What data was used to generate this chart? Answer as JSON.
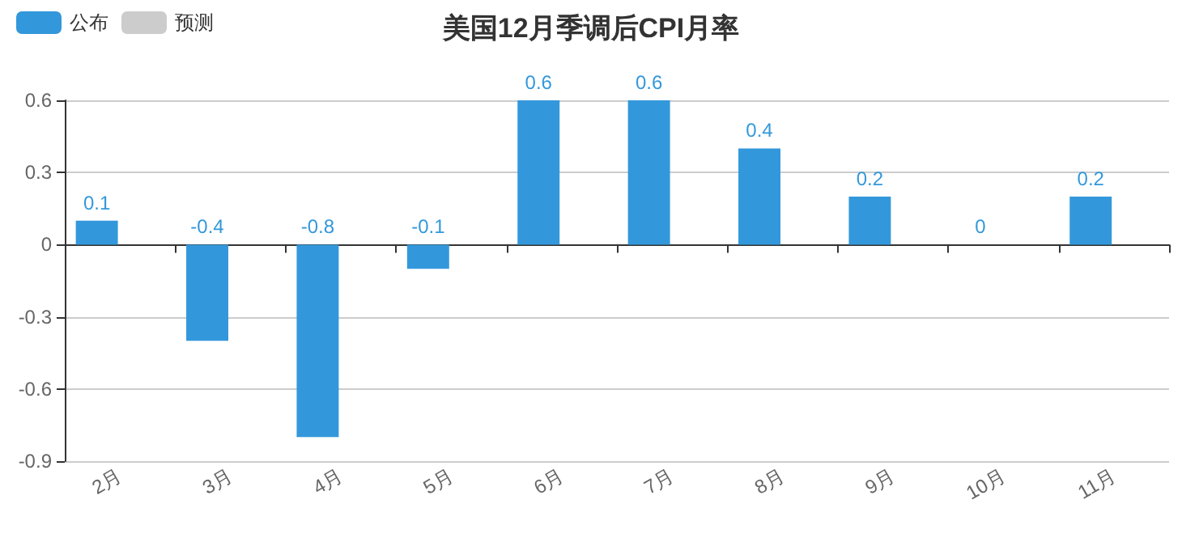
{
  "chart_data": {
    "type": "bar",
    "title": "美国12月季调后CPI月率",
    "categories": [
      "2月",
      "3月",
      "4月",
      "5月",
      "6月",
      "7月",
      "8月",
      "9月",
      "10月",
      "11月"
    ],
    "series": [
      {
        "name": "公布",
        "color": "#3398db",
        "values": [
          0.1,
          -0.4,
          -0.8,
          -0.1,
          0.6,
          0.6,
          0.4,
          0.2,
          0,
          0.2
        ]
      },
      {
        "name": "预测",
        "color": "#cccccc",
        "values": [
          null,
          null,
          null,
          null,
          null,
          null,
          null,
          null,
          null,
          null
        ]
      }
    ],
    "ylim": [
      -0.9,
      0.6
    ],
    "yticks": [
      -0.9,
      -0.6,
      -0.3,
      0,
      0.3,
      0.6
    ],
    "grid": "y",
    "legend": "top left",
    "data_labels": true
  }
}
